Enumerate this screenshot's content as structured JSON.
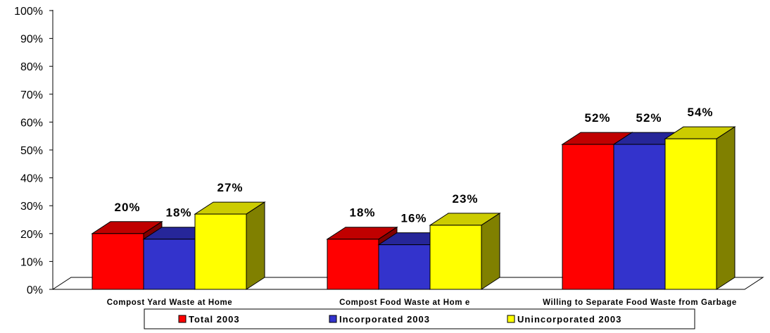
{
  "chart_data": {
    "type": "bar",
    "title": "",
    "xlabel": "",
    "ylabel": "",
    "categories": [
      "Compost Yard Waste at Home",
      "Compost Food Waste at Hom e",
      "Willing to Separate Food Waste from Garbage"
    ],
    "series": [
      {
        "name": "Total 2003",
        "values": [
          20,
          18,
          52
        ],
        "labels": [
          "20%",
          "18%",
          "52%"
        ],
        "color": "#ff0000",
        "top_color": "#c00000",
        "side_color": "#7f0000"
      },
      {
        "name": "Incorporated 2003",
        "values": [
          18,
          16,
          52
        ],
        "labels": [
          "18%",
          "16%",
          "52%"
        ],
        "color": "#3333cc",
        "top_color": "#262699",
        "side_color": "#161666"
      },
      {
        "name": "Unincorporated 2003",
        "values": [
          27,
          23,
          54
        ],
        "labels": [
          "27%",
          "23%",
          "54%"
        ],
        "color": "#ffff00",
        "top_color": "#cccc00",
        "side_color": "#808000"
      }
    ],
    "y_ticks": [
      "0%",
      "10%",
      "20%",
      "30%",
      "40%",
      "50%",
      "60%",
      "70%",
      "80%",
      "90%",
      "100%"
    ],
    "ylim": [
      0,
      100
    ],
    "grid": false,
    "legend_position": "bottom",
    "legend_entries": [
      "Total 2003",
      "Incorporated 2003",
      "Unincorporated 2003"
    ]
  }
}
